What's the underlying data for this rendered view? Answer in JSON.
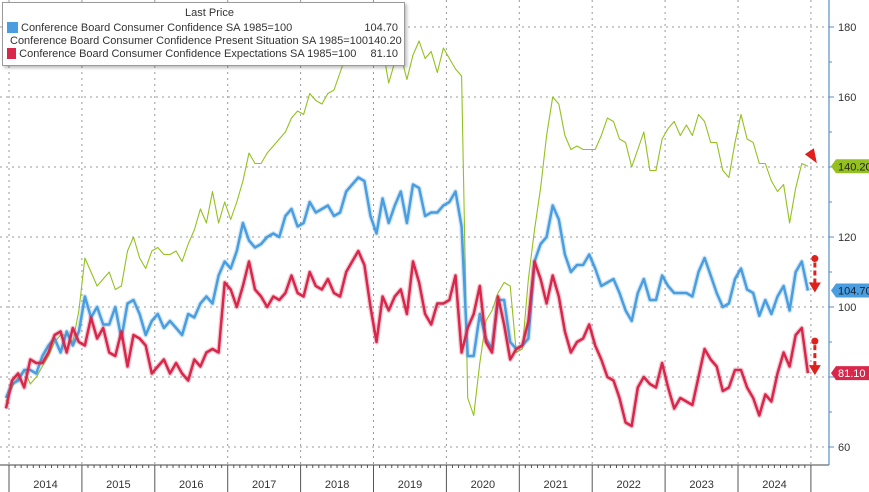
{
  "chart_data": {
    "type": "line",
    "y_axis": {
      "side": "right",
      "ylim": [
        55,
        185
      ],
      "ticks": [
        60,
        80,
        100,
        120,
        140,
        160,
        180
      ],
      "grid": true
    },
    "x_axis": {
      "ticks": [
        "2014",
        "2015",
        "2016",
        "2017",
        "2018",
        "2019",
        "2020",
        "2021",
        "2022",
        "2023",
        "2024"
      ],
      "grid": true
    },
    "legend": {
      "title": "Last Price",
      "placement": "top-left"
    },
    "dates": [
      "2013-12",
      "2014-01",
      "2014-02",
      "2014-03",
      "2014-04",
      "2014-05",
      "2014-06",
      "2014-07",
      "2014-08",
      "2014-09",
      "2014-10",
      "2014-11",
      "2014-12",
      "2015-01",
      "2015-02",
      "2015-03",
      "2015-04",
      "2015-05",
      "2015-06",
      "2015-07",
      "2015-08",
      "2015-09",
      "2015-10",
      "2015-11",
      "2015-12",
      "2016-01",
      "2016-02",
      "2016-03",
      "2016-04",
      "2016-05",
      "2016-06",
      "2016-07",
      "2016-08",
      "2016-09",
      "2016-10",
      "2016-11",
      "2016-12",
      "2017-01",
      "2017-02",
      "2017-03",
      "2017-04",
      "2017-05",
      "2017-06",
      "2017-07",
      "2017-08",
      "2017-09",
      "2017-10",
      "2017-11",
      "2017-12",
      "2018-01",
      "2018-02",
      "2018-03",
      "2018-04",
      "2018-05",
      "2018-06",
      "2018-07",
      "2018-08",
      "2018-09",
      "2018-10",
      "2018-11",
      "2018-12",
      "2019-01",
      "2019-02",
      "2019-03",
      "2019-04",
      "2019-05",
      "2019-06",
      "2019-07",
      "2019-08",
      "2019-09",
      "2019-10",
      "2019-11",
      "2019-12",
      "2020-01",
      "2020-02",
      "2020-03",
      "2020-04",
      "2020-05",
      "2020-06",
      "2020-07",
      "2020-08",
      "2020-09",
      "2020-10",
      "2020-11",
      "2020-12",
      "2021-01",
      "2021-02",
      "2021-03",
      "2021-04",
      "2021-05",
      "2021-06",
      "2021-07",
      "2021-08",
      "2021-09",
      "2021-10",
      "2021-11",
      "2021-12",
      "2022-01",
      "2022-02",
      "2022-03",
      "2022-04",
      "2022-05",
      "2022-06",
      "2022-07",
      "2022-08",
      "2022-09",
      "2022-10",
      "2022-11",
      "2022-12",
      "2023-01",
      "2023-02",
      "2023-03",
      "2023-04",
      "2023-05",
      "2023-06",
      "2023-07",
      "2023-08",
      "2023-09",
      "2023-10",
      "2023-11",
      "2023-12",
      "2024-01",
      "2024-02",
      "2024-03",
      "2024-04",
      "2024-05",
      "2024-06",
      "2024-07",
      "2024-08",
      "2024-09",
      "2024-10",
      "2024-11",
      "2024-12"
    ],
    "series": [
      {
        "name": "Conference Board Consumer Confidence SA 1985=100",
        "last": "104.70",
        "color": "#4a9ee0",
        "values": [
          74,
          78,
          79,
          82,
          82,
          81,
          86,
          89,
          91,
          87,
          93,
          89,
          93,
          103,
          97,
          100,
          95,
          95,
          100,
          91,
          101,
          102,
          98,
          92,
          96,
          98,
          94,
          96,
          94,
          92,
          98,
          97,
          101,
          103,
          101,
          109,
          113,
          111,
          116,
          124,
          119,
          117,
          118,
          120,
          121,
          120,
          126,
          128,
          123,
          124,
          130,
          127,
          128,
          129,
          126,
          127,
          133,
          135,
          137,
          136,
          126,
          121,
          131,
          124,
          129,
          133,
          124,
          135,
          134,
          126,
          127,
          127,
          129,
          130,
          133,
          123,
          86,
          86,
          98,
          91,
          88,
          102,
          102,
          90,
          88,
          89,
          91,
          113,
          118,
          120,
          129,
          125,
          115,
          110,
          112,
          112,
          115,
          111,
          106,
          107,
          108,
          104,
          99,
          96,
          104,
          108,
          102,
          102,
          109,
          106,
          104,
          104,
          104,
          103,
          110,
          114,
          109,
          104,
          100,
          101,
          108,
          111,
          105,
          104,
          97.5,
          102,
          98,
          103,
          106,
          99,
          110,
          113,
          104.7
        ]
      },
      {
        "name": "Conference Board Consumer Confidence Present Situation SA 1985=100",
        "last": "140.20",
        "color": "#94c11f",
        "values": [
          73,
          77,
          80,
          82,
          78,
          80,
          83,
          86,
          90,
          92,
          92,
          90,
          99,
          114,
          110,
          106,
          108,
          110,
          105,
          106,
          116,
          120,
          114,
          111,
          116,
          117,
          115,
          115,
          116,
          113,
          118,
          122,
          128,
          124,
          133,
          124,
          130,
          125,
          130,
          136,
          144,
          141,
          141,
          144,
          146,
          148,
          150,
          154,
          156,
          155,
          161,
          159,
          158,
          161,
          162,
          167,
          172,
          170,
          173,
          172,
          171,
          172,
          174,
          164,
          170,
          172,
          165,
          172,
          176,
          171,
          173,
          167,
          174,
          171,
          168,
          166,
          74,
          69,
          84,
          96,
          99,
          104,
          107,
          106,
          87,
          88,
          108,
          122,
          134,
          149,
          160,
          158,
          149,
          145,
          146,
          145,
          145,
          145,
          149,
          154,
          153,
          148,
          147,
          140,
          145,
          150,
          139,
          139,
          148,
          151,
          153,
          149,
          152,
          149,
          155,
          153,
          147,
          147,
          139,
          137,
          147,
          155,
          148,
          147,
          141,
          141,
          136,
          133,
          135,
          124,
          134,
          141,
          140.2
        ]
      },
      {
        "name": "Conference Board Consumer Confidence Expectations SA 1985=100",
        "last": "81.10",
        "color": "#d8274a",
        "values": [
          71,
          79,
          81,
          77,
          85,
          84,
          84,
          87,
          92,
          93,
          87,
          94,
          90,
          89,
          97,
          91,
          94,
          87,
          86,
          93,
          83,
          92,
          91,
          89,
          81,
          83,
          85,
          81,
          84,
          81,
          79,
          85,
          83,
          87,
          88,
          87,
          107,
          105,
          100,
          106,
          113,
          105,
          103,
          100,
          103,
          102,
          104,
          109,
          104,
          103,
          110,
          106,
          105,
          108,
          104,
          103,
          110,
          113,
          116,
          112,
          100,
          90,
          103,
          99,
          103,
          105,
          98,
          113,
          107,
          98,
          95,
          101,
          101,
          102,
          109,
          87,
          94,
          98,
          106,
          90,
          87,
          103,
          95,
          85,
          88,
          89,
          96,
          113,
          108,
          101,
          109,
          103,
          93,
          87,
          90,
          91,
          95,
          89,
          85,
          80,
          79,
          74,
          67,
          66,
          77,
          80,
          78,
          77,
          84,
          77,
          71,
          74,
          73,
          72,
          80,
          88,
          85,
          83,
          76,
          77,
          82,
          82,
          77,
          74,
          69,
          75,
          73,
          81,
          87,
          83,
          92,
          94,
          81.1
        ]
      }
    ],
    "annotations": [
      {
        "type": "arrow",
        "color": "#e0201c",
        "target_series": 1,
        "direction": "down"
      },
      {
        "type": "dashed-arrow",
        "color": "#e0201c",
        "target_series": 0,
        "direction": "down"
      },
      {
        "type": "dashed-arrow",
        "color": "#e0201c",
        "target_series": 2,
        "direction": "down"
      }
    ]
  }
}
